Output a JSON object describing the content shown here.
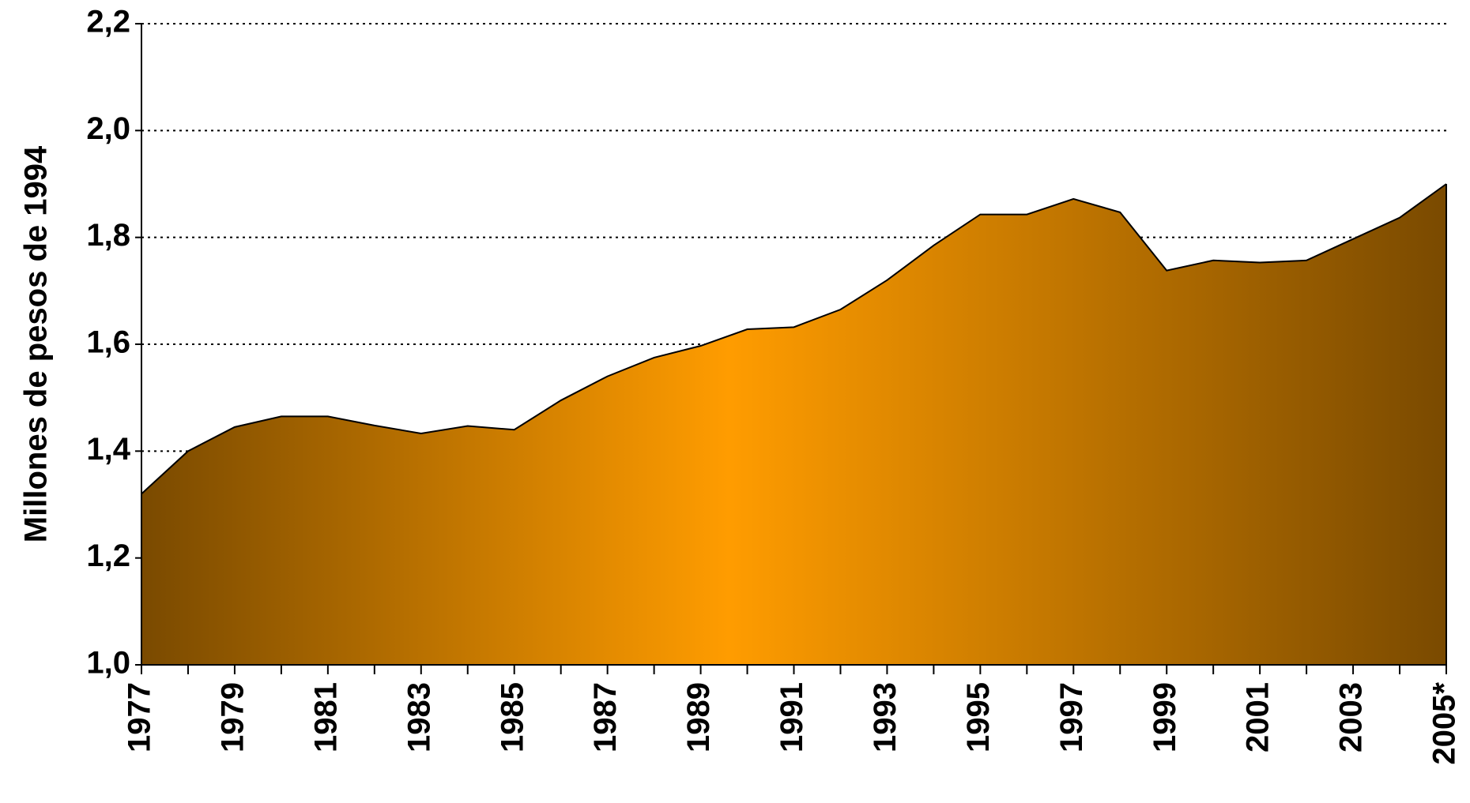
{
  "chart_data": {
    "type": "area",
    "ylabel": "Millones de pesos de 1994",
    "categories": [
      "1977",
      null,
      "1979",
      null,
      "1981",
      null,
      "1983",
      null,
      "1985",
      null,
      "1987",
      null,
      "1989",
      null,
      "1991",
      null,
      "1993",
      null,
      "1995",
      null,
      "1997",
      null,
      "1999",
      null,
      "2001",
      null,
      "2003",
      null,
      "2005*"
    ],
    "values": [
      1.32,
      1.4,
      1.445,
      1.465,
      1.465,
      1.448,
      1.433,
      1.447,
      1.44,
      1.495,
      1.54,
      1.575,
      1.597,
      1.628,
      1.632,
      1.665,
      1.72,
      1.785,
      1.843,
      1.843,
      1.872,
      1.847,
      1.738,
      1.757,
      1.753,
      1.757,
      1.797,
      1.837,
      1.9
    ],
    "gradient": [
      "#7a4a00",
      "#ff9c00",
      "#7a4a00"
    ],
    "ylim": [
      1.0,
      2.2
    ],
    "yticks": [
      {
        "value": 1.0,
        "label": "1,0"
      },
      {
        "value": 1.2,
        "label": "1,2"
      },
      {
        "value": 1.4,
        "label": "1,4"
      },
      {
        "value": 1.6,
        "label": "1,6"
      },
      {
        "value": 1.8,
        "label": "1,8"
      },
      {
        "value": 2.0,
        "label": "2,0"
      },
      {
        "value": 2.2,
        "label": "2,2"
      }
    ],
    "grid": true
  }
}
